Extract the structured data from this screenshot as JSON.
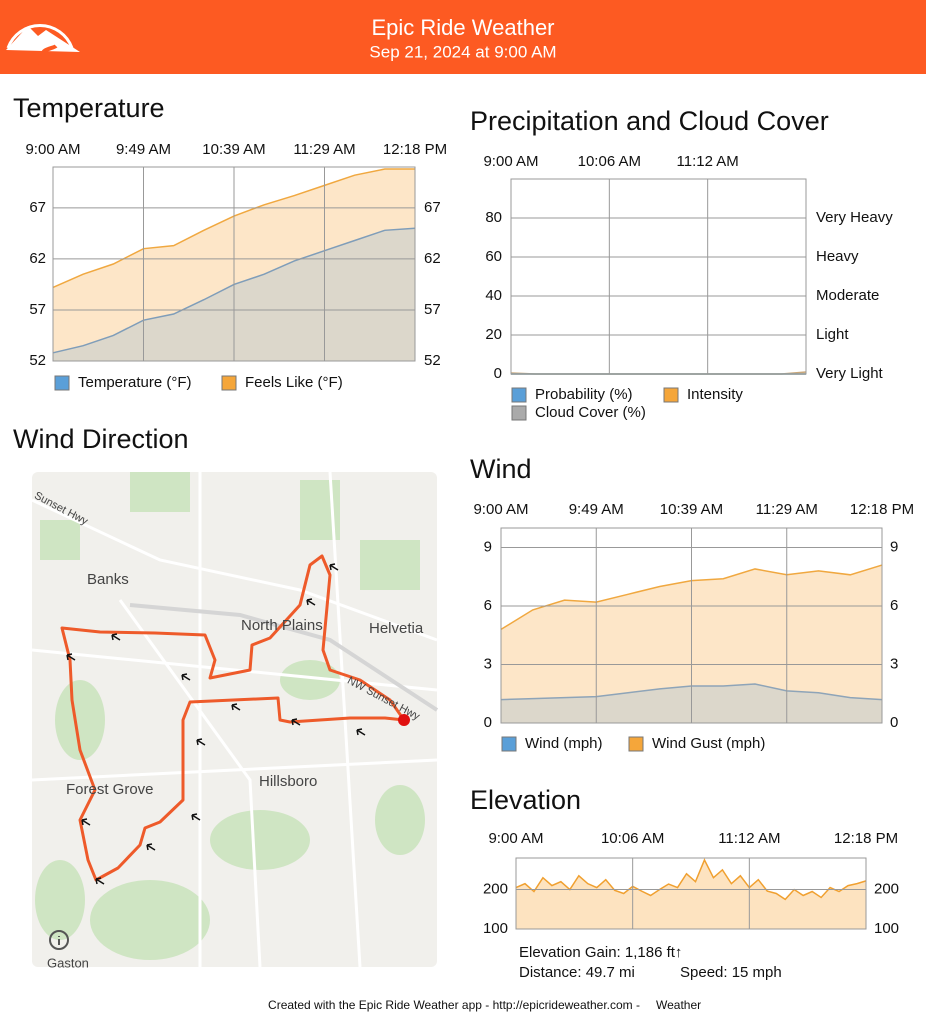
{
  "header": {
    "title": "Epic Ride Weather",
    "subtitle": "Sep 21, 2024 at 9:00 AM"
  },
  "chart_data": [
    {
      "type": "area",
      "title": "Temperature",
      "time_labels": [
        "9:00 AM",
        "9:49 AM",
        "10:39 AM",
        "11:29 AM",
        "12:18 PM"
      ],
      "ylim": [
        52,
        71
      ],
      "yticks": [
        52,
        57,
        62,
        67
      ],
      "mirror_ticks": true,
      "grid": true,
      "series": [
        {
          "name": "Temperature (°F)",
          "color": "#5a9fd8",
          "line_color": "#7f9db9",
          "fill_color": "#dcd7cb",
          "values": [
            52.8,
            53.5,
            54.5,
            56.0,
            56.6,
            58.0,
            59.5,
            60.5,
            61.8,
            62.8,
            63.8,
            64.8,
            65.0
          ]
        },
        {
          "name": "Feels Like (°F)",
          "color": "#f5a63a",
          "line_color": "#f0a840",
          "fill_color": "#fde6c8",
          "values": [
            59.2,
            60.5,
            61.5,
            63.0,
            63.3,
            64.8,
            66.2,
            67.3,
            68.2,
            69.2,
            70.2,
            70.8,
            70.8
          ]
        }
      ]
    },
    {
      "type": "area",
      "title": "Precipitation and Cloud Cover",
      "time_labels": [
        "9:00 AM",
        "10:06 AM",
        "11:12 AM"
      ],
      "ylim": [
        0,
        100
      ],
      "yticks": [
        0,
        20,
        40,
        60,
        80
      ],
      "grid": true,
      "y2lim": [
        0,
        100
      ],
      "y2ticks": [
        {
          "value": 0,
          "label": "Very Light"
        },
        {
          "value": 20,
          "label": "Light"
        },
        {
          "value": 40,
          "label": "Moderate"
        },
        {
          "value": 60,
          "label": "Heavy"
        },
        {
          "value": 80,
          "label": "Very Heavy"
        }
      ],
      "series": [
        {
          "name": "Probability (%)",
          "color": "#5a9fd8",
          "line_color": "#5a9fd8",
          "fill_color": "#c9def2",
          "values": [
            0,
            0,
            0,
            0,
            0,
            0,
            0,
            0,
            0,
            0,
            0,
            0,
            0
          ]
        },
        {
          "name": "Intensity",
          "color": "#f5a63a",
          "line_color": "#f0a840",
          "fill_color": "#fde6c8",
          "values": [
            0,
            0,
            0,
            0,
            0,
            0,
            0,
            0,
            0,
            0,
            0,
            0,
            0
          ]
        },
        {
          "name": "Cloud Cover (%)",
          "color": "#aaaaaa",
          "line_color": "#c9a77a",
          "fill_color": "#e6d9c6",
          "values": [
            0.5,
            0,
            0,
            0,
            0,
            0,
            0,
            0,
            0,
            0,
            0,
            0,
            1
          ]
        }
      ]
    },
    {
      "type": "area",
      "title": "Wind",
      "time_labels": [
        "9:00 AM",
        "9:49 AM",
        "10:39 AM",
        "11:29 AM",
        "12:18 PM"
      ],
      "ylim": [
        0,
        10
      ],
      "yticks": [
        0,
        3,
        6,
        9
      ],
      "mirror_ticks": true,
      "grid": true,
      "series": [
        {
          "name": "Wind (mph)",
          "color": "#5a9fd8",
          "line_color": "#8ea4b8",
          "fill_color": "#dcd7cb",
          "values": [
            1.2,
            1.25,
            1.3,
            1.35,
            1.55,
            1.75,
            1.9,
            1.9,
            2.0,
            1.65,
            1.55,
            1.3,
            1.2
          ]
        },
        {
          "name": "Wind Gust (mph)",
          "color": "#f5a63a",
          "line_color": "#f0a840",
          "fill_color": "#fde6c8",
          "values": [
            4.8,
            5.8,
            6.3,
            6.2,
            6.6,
            7.0,
            7.3,
            7.4,
            7.9,
            7.6,
            7.8,
            7.6,
            8.1
          ]
        }
      ]
    },
    {
      "type": "area",
      "title": "Elevation",
      "time_labels": [
        "9:00 AM",
        "10:06 AM",
        "11:12 AM",
        "12:18 PM"
      ],
      "ylim": [
        100,
        280
      ],
      "yticks": [
        100,
        200
      ],
      "mirror_ticks": true,
      "grid": true,
      "series": [
        {
          "color": "#f0a030",
          "line_color": "#f0a030",
          "fill_color": "#fde3c0",
          "values": [
            205,
            215,
            195,
            230,
            210,
            220,
            200,
            235,
            215,
            205,
            225,
            198,
            190,
            208,
            196,
            185,
            200,
            214,
            205,
            240,
            220,
            275,
            230,
            250,
            215,
            235,
            205,
            225,
            196,
            190,
            175,
            200,
            185,
            195,
            180,
            205,
            195,
            210,
            215,
            222
          ]
        }
      ]
    }
  ],
  "map": {
    "title": "Wind Direction",
    "labels": [
      "Sunset Hwy",
      "Banks",
      "North Plains",
      "Helvetia",
      "NW Sunset Hwy",
      "Forest Grove",
      "Hillsboro",
      "Gaston"
    ]
  },
  "elevation_stats": {
    "gain": "Elevation Gain: 1,186 ft↑",
    "distance": "Distance: 49.7 mi",
    "speed": "Speed: 15 mph"
  },
  "footer": {
    "text": "Created with the Epic Ride Weather app - http://epicrideweather.com - ",
    "brand": "Weather"
  }
}
